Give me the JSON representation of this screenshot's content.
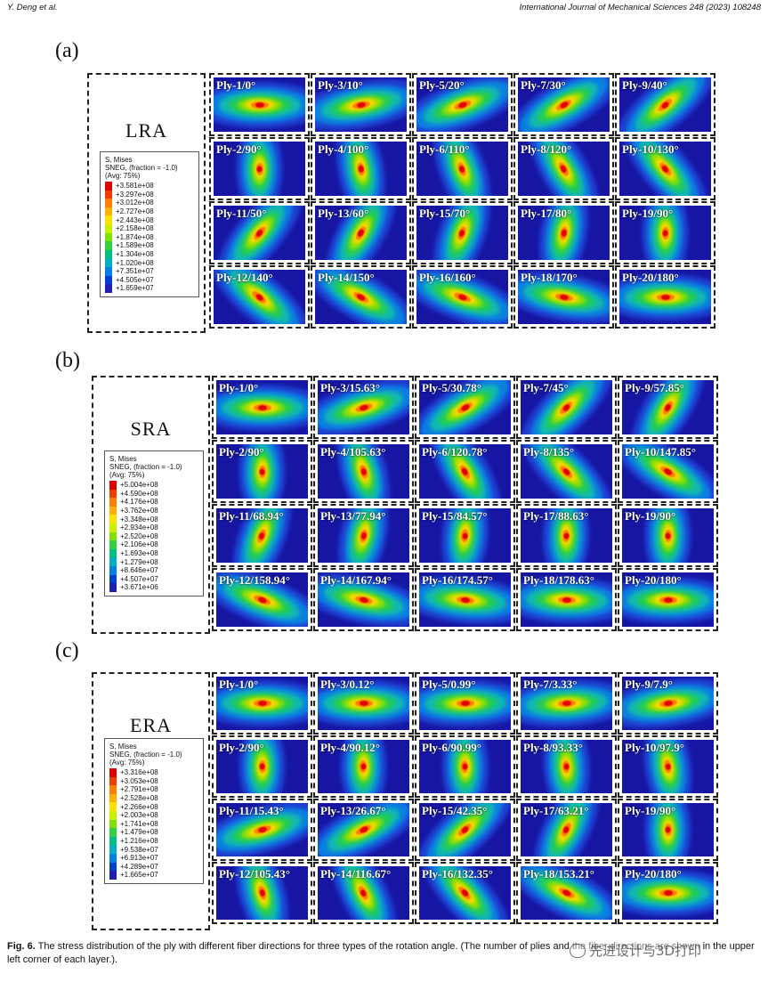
{
  "header": {
    "left": "Y. Deng et al.",
    "right": "International Journal of Mechanical Sciences 248 (2023) 108248"
  },
  "legend_common": {
    "title": "S, Mises",
    "sneg": "SNEG, (fraction = -1.0)",
    "avg": "(Avg: 75%)"
  },
  "colors": {
    "scale": [
      "#e00000",
      "#f03a00",
      "#ff8000",
      "#ffb000",
      "#ffe000",
      "#c8f000",
      "#80e000",
      "#30d040",
      "#00c080",
      "#00b0c0",
      "#0080e0",
      "#0040d0",
      "#2020b0"
    ],
    "plot_bg": "#1616a3"
  },
  "panels": [
    {
      "label": "(a)",
      "title": "LRA",
      "legend_values": [
        "+3.581e+08",
        "+3.297e+08",
        "+3.012e+08",
        "+2.727e+08",
        "+2.443e+08",
        "+2.158e+08",
        "+1.874e+08",
        "+1.589e+08",
        "+1.304e+08",
        "+1.020e+08",
        "+7.351e+07",
        "+4.505e+07",
        "+1.659e+07"
      ],
      "rows": [
        [
          "Ply-1/0°",
          "Ply-3/10°",
          "Ply-5/20°",
          "Ply-7/30°",
          "Ply-9/40°"
        ],
        [
          "Ply-2/90°",
          "Ply-4/100°",
          "Ply-6/110°",
          "Ply-8/120°",
          "Ply-10/130°"
        ],
        [
          "Ply-11/50°",
          "Ply-13/60°",
          "Ply-15/70°",
          "Ply-17/80°",
          "Ply-19/90°"
        ],
        [
          "Ply-12/140°",
          "Ply-14/150°",
          "Ply-16/160°",
          "Ply-18/170°",
          "Ply-20/180°"
        ]
      ],
      "angles": [
        [
          0,
          10,
          20,
          30,
          40
        ],
        [
          90,
          100,
          110,
          120,
          130
        ],
        [
          50,
          60,
          70,
          80,
          90
        ],
        [
          140,
          150,
          160,
          170,
          180
        ]
      ]
    },
    {
      "label": "(b)",
      "title": "SRA",
      "legend_values": [
        "+5.004e+08",
        "+4.590e+08",
        "+4.176e+08",
        "+3.762e+08",
        "+3.348e+08",
        "+2.934e+08",
        "+2.520e+08",
        "+2.106e+08",
        "+1.693e+08",
        "+1.279e+08",
        "+8.646e+07",
        "+4.507e+07",
        "+3.671e+06"
      ],
      "rows": [
        [
          "Ply-1/0°",
          "Ply-3/15.63°",
          "Ply-5/30.78°",
          "Ply-7/45°",
          "Ply-9/57.85°"
        ],
        [
          "Ply-2/90°",
          "Ply-4/105.63°",
          "Ply-6/120.78°",
          "Ply-8/135°",
          "Ply-10/147.85°"
        ],
        [
          "Ply-11/68.94°",
          "Ply-13/77.94°",
          "Ply-15/84.57°",
          "Ply-17/88.63°",
          "Ply-19/90°"
        ],
        [
          "Ply-12/158.94°",
          "Ply-14/167.94°",
          "Ply-16/174.57°",
          "Ply-18/178.63°",
          "Ply-20/180°"
        ]
      ],
      "angles": [
        [
          0,
          15.63,
          30.78,
          45,
          57.85
        ],
        [
          90,
          105.63,
          120.78,
          135,
          147.85
        ],
        [
          68.94,
          77.94,
          84.57,
          88.63,
          90
        ],
        [
          158.94,
          167.94,
          174.57,
          178.63,
          180
        ]
      ]
    },
    {
      "label": "(c)",
      "title": "ERA",
      "legend_values": [
        "+3.316e+08",
        "+3.053e+08",
        "+2.791e+08",
        "+2.528e+08",
        "+2.266e+08",
        "+2.003e+08",
        "+1.741e+08",
        "+1.479e+08",
        "+1.216e+08",
        "+9.538e+07",
        "+6.913e+07",
        "+4.289e+07",
        "+1.665e+07"
      ],
      "rows": [
        [
          "Ply-1/0°",
          "Ply-3/0.12°",
          "Ply-5/0.99°",
          "Ply-7/3.33°",
          "Ply-9/7.9°"
        ],
        [
          "Ply-2/90°",
          "Ply-4/90.12°",
          "Ply-6/90.99°",
          "Ply-8/93.33°",
          "Ply-10/97.9°"
        ],
        [
          "Ply-11/15.43°",
          "Ply-13/26.67°",
          "Ply-15/42.35°",
          "Ply-17/63.21°",
          "Ply-19/90°"
        ],
        [
          "Ply-12/105.43°",
          "Ply-14/116.67°",
          "Ply-16/132.35°",
          "Ply-18/153.21°",
          "Ply-20/180°"
        ]
      ],
      "angles": [
        [
          0,
          0.12,
          0.99,
          3.33,
          7.9
        ],
        [
          90,
          90.12,
          90.99,
          93.33,
          97.9
        ],
        [
          15.43,
          26.67,
          42.35,
          63.21,
          90
        ],
        [
          105.43,
          116.67,
          132.35,
          153.21,
          180
        ]
      ]
    }
  ],
  "caption": {
    "label": "Fig. 6.",
    "text": "The stress distribution of the ply with different fiber directions for three types of the rotation angle. (The number of plies and the fiber directions are shown in the upper left corner of each layer.)."
  },
  "watermark": "先进设计与3D打印"
}
